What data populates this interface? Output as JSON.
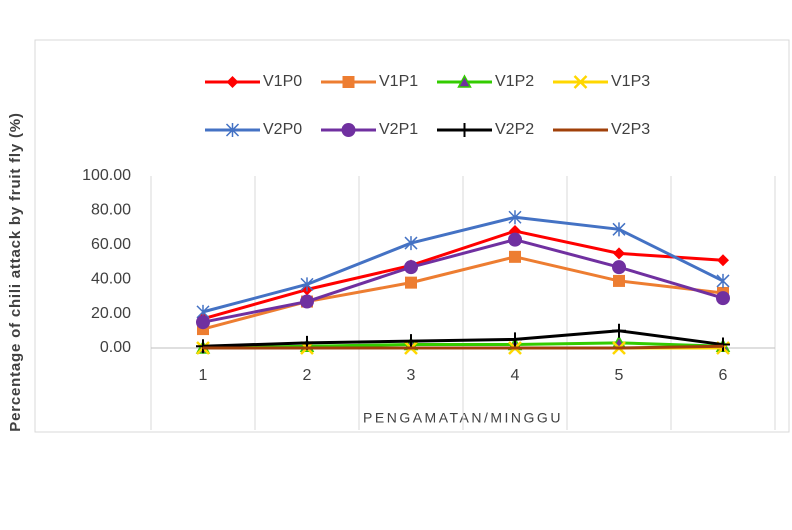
{
  "chart_data": {
    "type": "line",
    "y_label": "Percentage of chili attack by fruit fly (%)",
    "x_label": "PENGAMATAN/MINGGU",
    "categories": [
      "1",
      "2",
      "3",
      "4",
      "5",
      "6"
    ],
    "series": [
      {
        "name": "V1P0",
        "color": "#ff0000",
        "marker": "diamond",
        "values": [
          17,
          34,
          48,
          68,
          55,
          51
        ]
      },
      {
        "name": "V1P1",
        "color": "#ed7d31",
        "marker": "square",
        "values": [
          11,
          27,
          38,
          53,
          39,
          32
        ]
      },
      {
        "name": "V1P2",
        "color": "#33cc00",
        "marker": "triangle",
        "values": [
          0,
          1,
          2,
          2,
          3,
          1
        ]
      },
      {
        "name": "V1P3",
        "color": "#ffd700",
        "marker": "x",
        "values": [
          0,
          0,
          0,
          0,
          0,
          0
        ]
      },
      {
        "name": "V2P0",
        "color": "#4472c4",
        "marker": "star",
        "values": [
          21,
          37,
          61,
          76,
          69,
          39
        ]
      },
      {
        "name": "V2P1",
        "color": "#7030a0",
        "marker": "circle",
        "values": [
          15,
          27,
          47,
          63,
          47,
          29
        ]
      },
      {
        "name": "V2P2",
        "color": "#000000",
        "marker": "plus",
        "values": [
          1,
          3,
          4,
          5,
          10,
          2
        ]
      },
      {
        "name": "V2P3",
        "color": "#a0400a",
        "marker": "none",
        "values": [
          0,
          0,
          0,
          0,
          0,
          1
        ]
      }
    ],
    "ylim": [
      0,
      100
    ],
    "yticks": [
      {
        "value": 0,
        "label": "0.00"
      },
      {
        "value": 20,
        "label": "20.00"
      },
      {
        "value": 40,
        "label": "40.00"
      },
      {
        "value": 60,
        "label": "60.00"
      },
      {
        "value": 80,
        "label": "80.00"
      },
      {
        "value": 100,
        "label": "100.00"
      }
    ],
    "grid": "vertical",
    "legend": "top"
  }
}
